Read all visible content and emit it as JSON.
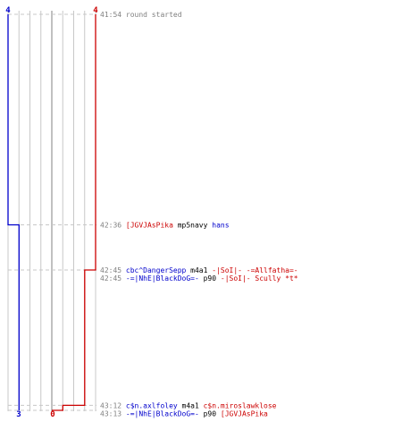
{
  "chart_data": {
    "type": "line",
    "title": "",
    "xlabel": "",
    "ylabel": "",
    "x_axis": {
      "lim": [
        0,
        4
      ],
      "ticks": [
        0,
        1,
        2,
        3,
        4
      ],
      "grid": true
    },
    "y_axis": {
      "unit": "time",
      "start": "41:54",
      "end": "43:13"
    },
    "series": [
      {
        "color": "#0000cc",
        "start_value": 4,
        "end_value": 3,
        "points": [
          {
            "time": "41:54",
            "value": 4
          },
          {
            "time": "42:36",
            "value": 4
          },
          {
            "time": "42:36",
            "value": 3
          },
          {
            "time": "43:13",
            "value": 3
          }
        ]
      },
      {
        "color": "#cc0000",
        "start_value": 4,
        "end_value": 0,
        "points": [
          {
            "time": "41:54",
            "value": 4
          },
          {
            "time": "42:45",
            "value": 4
          },
          {
            "time": "42:45",
            "value": 3
          },
          {
            "time": "43:12",
            "value": 3
          },
          {
            "time": "43:12",
            "value": 2
          },
          {
            "time": "43:12",
            "value": 1
          },
          {
            "time": "43:13",
            "value": 1
          },
          {
            "time": "43:13",
            "value": 0
          }
        ]
      }
    ],
    "labels": {
      "top_left": "4",
      "top_right": "4",
      "bottom_left": "3",
      "bottom_right": "0"
    },
    "events": [
      {
        "time": "41:54",
        "segments": [
          {
            "text": "round started",
            "color": "#808080"
          }
        ]
      },
      {
        "time": "42:36",
        "segments": [
          {
            "text": "[JGVJAsPika",
            "color": "#cc0000"
          },
          {
            "text": " mp5navy ",
            "color": "#000000"
          },
          {
            "text": "hans",
            "color": "#0000cc"
          }
        ]
      },
      {
        "time": "42:45",
        "segments": [
          {
            "text": "cbc^DangerSepp",
            "color": "#0000cc"
          },
          {
            "text": " m4a1 ",
            "color": "#000000"
          },
          {
            "text": "-|SoI|- -=Allfatha=-",
            "color": "#cc0000"
          }
        ]
      },
      {
        "time": "42:45",
        "segments": [
          {
            "text": "-=|NhE|BlackDoG=-",
            "color": "#0000cc"
          },
          {
            "text": " p90 ",
            "color": "#000000"
          },
          {
            "text": "-|SoI|- Scully *t*",
            "color": "#cc0000"
          }
        ]
      },
      {
        "time": "43:12",
        "segments": [
          {
            "text": "c$n.axlfoley",
            "color": "#0000cc"
          },
          {
            "text": " m4a1 ",
            "color": "#000000"
          },
          {
            "text": "c$n.miroslawklose",
            "color": "#cc0000"
          }
        ]
      },
      {
        "time": "43:13",
        "segments": [
          {
            "text": "-=|NhE|BlackDoG=-",
            "color": "#0000cc"
          },
          {
            "text": " p90 ",
            "color": "#000000"
          },
          {
            "text": "[JGVJAsPika",
            "color": "#cc0000"
          }
        ]
      }
    ],
    "colors": {
      "grid": "#c8c8c8",
      "center_line": "#808080",
      "guide": "#c8c8c8",
      "time_text": "#808080"
    }
  }
}
